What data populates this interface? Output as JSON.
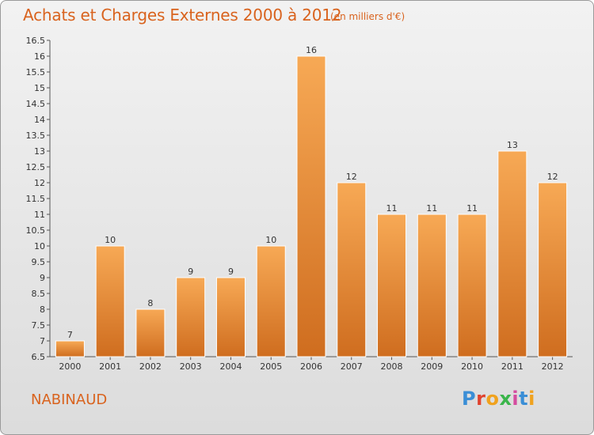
{
  "header": {
    "title": "Achats et Charges Externes 2000 à 2012",
    "subtitle": "(en milliers d'€)"
  },
  "footer": {
    "commune": "NABINAUD",
    "logo_text": "Proxiti",
    "logo_colors": [
      "#3a8ed6",
      "#e0432f",
      "#f0a21e",
      "#3ab54a",
      "#d44c9f",
      "#3a8ed6",
      "#f0a21e"
    ]
  },
  "chart_data": {
    "type": "bar",
    "title": "Achats et Charges Externes 2000 à 2012",
    "subtitle": "(en milliers d'€)",
    "xlabel": "",
    "ylabel": "",
    "categories": [
      "2000",
      "2001",
      "2002",
      "2003",
      "2004",
      "2005",
      "2006",
      "2007",
      "2008",
      "2009",
      "2010",
      "2011",
      "2012"
    ],
    "values": [
      7,
      10,
      8,
      9,
      9,
      10,
      16,
      12,
      11,
      11,
      11,
      13,
      12
    ],
    "ylim": [
      6.5,
      16.5
    ],
    "yticks": [
      6.5,
      7,
      7.5,
      8,
      8.5,
      9,
      9.5,
      10,
      10.5,
      11,
      11.5,
      12,
      12.5,
      13,
      13.5,
      14,
      14.5,
      15,
      15.5,
      16,
      16.5
    ],
    "ytick_labels": [
      "6.5",
      "7",
      "7.5",
      "8",
      "8.5",
      "9",
      "9.5",
      "10",
      "10.5",
      "11",
      "11.5",
      "12",
      "12.5",
      "13",
      "13.5",
      "14",
      "14.5",
      "15",
      "15.5",
      "16",
      "16.5"
    ],
    "bar_color_top": "#f7a955",
    "bar_color_bottom": "#cf6d1f",
    "grid": false,
    "legend": "none"
  }
}
